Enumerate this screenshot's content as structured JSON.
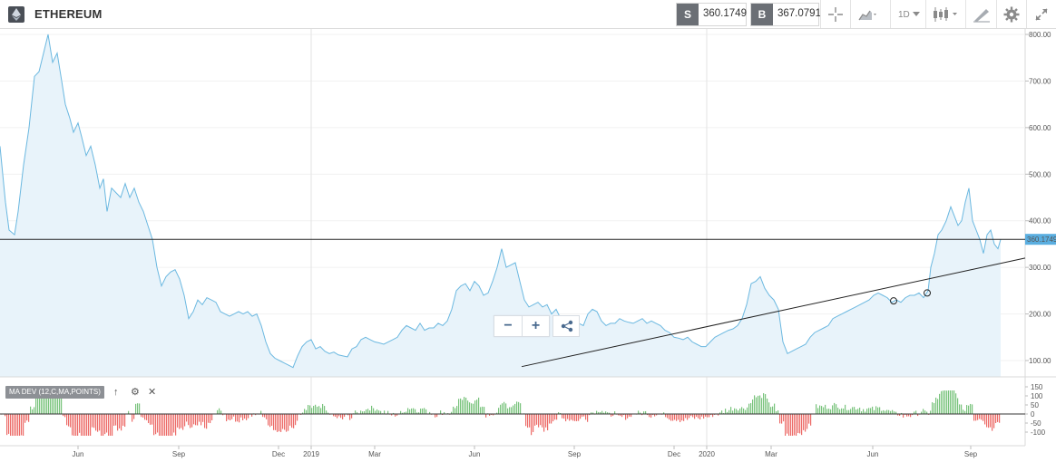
{
  "header": {
    "title": "ETHEREUM",
    "logo_icon": "ethereum-icon",
    "sell": {
      "tag": "S",
      "value": "360.1749"
    },
    "buy": {
      "tag": "B",
      "value": "367.0791"
    },
    "toolbar": [
      {
        "name": "crosshair-button",
        "icon": "crosshair-icon"
      },
      {
        "name": "chart-type-button",
        "icon": "area-chart-icon"
      },
      {
        "name": "timeframe-button",
        "label": "1D"
      },
      {
        "name": "candle-type-button",
        "icon": "candlestick-icon"
      },
      {
        "name": "drawing-tools-button",
        "icon": "pencil-icon"
      },
      {
        "name": "settings-button",
        "icon": "gear-icon"
      },
      {
        "name": "fullscreen-button",
        "icon": "expand-icon"
      }
    ]
  },
  "price_axis": {
    "ticks": [
      "800.00",
      "700.00",
      "600.00",
      "500.00",
      "400.00",
      "300.00",
      "200.00",
      "100.00"
    ],
    "current_price_label": "360.1749"
  },
  "indicator": {
    "label": "MA DEV (12,C,MA,POINTS)",
    "axis_ticks": [
      "150",
      "100",
      "50",
      "0",
      "-50",
      "-100"
    ],
    "buttons": [
      "arrow-up-icon",
      "gear-icon",
      "close-icon"
    ]
  },
  "time_axis": [
    "Jun",
    "Sep",
    "Dec",
    "2019",
    "Mar",
    "Jun",
    "Sep",
    "Dec",
    "2020",
    "Mar",
    "Jun",
    "Sep"
  ],
  "zoom_controls": {
    "minus": "−",
    "plus": "+"
  },
  "colors": {
    "price_line": "#6bb8e0",
    "price_fill": "#e8f3fa",
    "current_price_badge": "#5aaee0",
    "histogram_up": "#4caf50",
    "histogram_down": "#e53935"
  },
  "chart_data": {
    "type": "area",
    "series": [
      {
        "values": [
          [
            0,
            560
          ],
          [
            6,
            440
          ],
          [
            10,
            380
          ],
          [
            16,
            370
          ],
          [
            20,
            420
          ],
          [
            26,
            520
          ],
          [
            32,
            600
          ],
          [
            38,
            710
          ],
          [
            43,
            720
          ],
          [
            48,
            760
          ],
          [
            53,
            800
          ],
          [
            58,
            740
          ],
          [
            63,
            760
          ],
          [
            68,
            700
          ],
          [
            72,
            650
          ],
          [
            77,
            620
          ],
          [
            81,
            590
          ],
          [
            86,
            610
          ],
          [
            90,
            580
          ],
          [
            95,
            540
          ],
          [
            100,
            560
          ],
          [
            105,
            520
          ],
          [
            110,
            470
          ],
          [
            114,
            490
          ],
          [
            118,
            420
          ],
          [
            123,
            470
          ],
          [
            128,
            460
          ],
          [
            133,
            450
          ],
          [
            138,
            480
          ],
          [
            143,
            450
          ],
          [
            148,
            470
          ],
          [
            153,
            440
          ],
          [
            158,
            420
          ],
          [
            163,
            390
          ],
          [
            168,
            360
          ],
          [
            173,
            300
          ],
          [
            178,
            260
          ],
          [
            183,
            280
          ],
          [
            188,
            290
          ],
          [
            193,
            295
          ],
          [
            198,
            275
          ],
          [
            203,
            240
          ],
          [
            208,
            190
          ],
          [
            213,
            205
          ],
          [
            218,
            230
          ],
          [
            223,
            220
          ],
          [
            228,
            235
          ],
          [
            233,
            230
          ],
          [
            238,
            225
          ],
          [
            243,
            205
          ],
          [
            248,
            200
          ],
          [
            253,
            195
          ],
          [
            258,
            200
          ],
          [
            263,
            205
          ],
          [
            268,
            200
          ],
          [
            273,
            205
          ],
          [
            278,
            195
          ],
          [
            283,
            200
          ],
          [
            288,
            175
          ],
          [
            293,
            140
          ],
          [
            298,
            115
          ],
          [
            303,
            105
          ],
          [
            308,
            100
          ],
          [
            313,
            95
          ],
          [
            318,
            90
          ],
          [
            323,
            85
          ],
          [
            328,
            110
          ],
          [
            333,
            130
          ],
          [
            338,
            140
          ],
          [
            343,
            145
          ],
          [
            348,
            125
          ],
          [
            353,
            130
          ],
          [
            358,
            120
          ],
          [
            363,
            115
          ],
          [
            368,
            118
          ],
          [
            373,
            112
          ],
          [
            378,
            110
          ],
          [
            383,
            108
          ],
          [
            388,
            125
          ],
          [
            393,
            130
          ],
          [
            398,
            145
          ],
          [
            403,
            150
          ],
          [
            408,
            145
          ],
          [
            413,
            140
          ],
          [
            418,
            138
          ],
          [
            423,
            135
          ],
          [
            428,
            140
          ],
          [
            433,
            145
          ],
          [
            438,
            150
          ],
          [
            443,
            165
          ],
          [
            448,
            175
          ],
          [
            453,
            170
          ],
          [
            458,
            165
          ],
          [
            463,
            180
          ],
          [
            468,
            165
          ],
          [
            473,
            170
          ],
          [
            478,
            170
          ],
          [
            483,
            180
          ],
          [
            488,
            175
          ],
          [
            493,
            185
          ],
          [
            498,
            210
          ],
          [
            503,
            250
          ],
          [
            508,
            260
          ],
          [
            513,
            265
          ],
          [
            518,
            250
          ],
          [
            523,
            270
          ],
          [
            528,
            260
          ],
          [
            533,
            240
          ],
          [
            538,
            245
          ],
          [
            543,
            270
          ],
          [
            548,
            300
          ],
          [
            553,
            340
          ],
          [
            558,
            300
          ],
          [
            563,
            305
          ],
          [
            568,
            310
          ],
          [
            573,
            270
          ],
          [
            578,
            230
          ],
          [
            583,
            215
          ],
          [
            588,
            220
          ],
          [
            593,
            225
          ],
          [
            598,
            215
          ],
          [
            603,
            220
          ],
          [
            608,
            200
          ],
          [
            613,
            210
          ],
          [
            618,
            190
          ],
          [
            623,
            195
          ],
          [
            628,
            180
          ],
          [
            633,
            175
          ],
          [
            638,
            180
          ],
          [
            643,
            175
          ],
          [
            648,
            200
          ],
          [
            653,
            210
          ],
          [
            658,
            205
          ],
          [
            663,
            185
          ],
          [
            668,
            175
          ],
          [
            673,
            180
          ],
          [
            678,
            180
          ],
          [
            683,
            190
          ],
          [
            688,
            185
          ],
          [
            693,
            182
          ],
          [
            698,
            180
          ],
          [
            703,
            185
          ],
          [
            708,
            190
          ],
          [
            713,
            180
          ],
          [
            718,
            185
          ],
          [
            723,
            180
          ],
          [
            728,
            175
          ],
          [
            733,
            165
          ],
          [
            738,
            160
          ],
          [
            743,
            150
          ],
          [
            748,
            148
          ],
          [
            753,
            145
          ],
          [
            758,
            150
          ],
          [
            763,
            140
          ],
          [
            768,
            135
          ],
          [
            773,
            130
          ],
          [
            778,
            130
          ],
          [
            783,
            140
          ],
          [
            788,
            150
          ],
          [
            793,
            155
          ],
          [
            798,
            160
          ],
          [
            803,
            165
          ],
          [
            808,
            168
          ],
          [
            813,
            175
          ],
          [
            818,
            190
          ],
          [
            823,
            220
          ],
          [
            828,
            265
          ],
          [
            833,
            270
          ],
          [
            838,
            280
          ],
          [
            843,
            255
          ],
          [
            848,
            240
          ],
          [
            853,
            230
          ],
          [
            858,
            210
          ],
          [
            863,
            140
          ],
          [
            868,
            115
          ],
          [
            873,
            120
          ],
          [
            878,
            125
          ],
          [
            883,
            130
          ],
          [
            888,
            135
          ],
          [
            893,
            150
          ],
          [
            898,
            160
          ],
          [
            903,
            165
          ],
          [
            908,
            170
          ],
          [
            913,
            175
          ],
          [
            918,
            190
          ],
          [
            923,
            195
          ],
          [
            928,
            200
          ],
          [
            933,
            205
          ],
          [
            938,
            210
          ],
          [
            943,
            215
          ],
          [
            948,
            220
          ],
          [
            953,
            225
          ],
          [
            958,
            230
          ],
          [
            963,
            240
          ],
          [
            968,
            245
          ],
          [
            973,
            240
          ],
          [
            978,
            235
          ],
          [
            983,
            225
          ],
          [
            988,
            230
          ],
          [
            993,
            225
          ],
          [
            998,
            235
          ],
          [
            1003,
            240
          ],
          [
            1008,
            240
          ],
          [
            1013,
            245
          ],
          [
            1018,
            235
          ],
          [
            1023,
            250
          ],
          [
            1026,
            300
          ],
          [
            1030,
            330
          ],
          [
            1034,
            370
          ],
          [
            1038,
            380
          ],
          [
            1043,
            400
          ],
          [
            1048,
            430
          ],
          [
            1052,
            410
          ],
          [
            1056,
            390
          ],
          [
            1060,
            400
          ],
          [
            1064,
            440
          ],
          [
            1068,
            470
          ],
          [
            1072,
            400
          ],
          [
            1076,
            380
          ],
          [
            1080,
            360
          ],
          [
            1084,
            330
          ],
          [
            1088,
            370
          ],
          [
            1092,
            380
          ],
          [
            1096,
            350
          ],
          [
            1100,
            340
          ],
          [
            1103,
            360
          ]
        ]
      }
    ],
    "ylim": [
      70,
      810
    ],
    "grid": true,
    "reference_lines": [
      {
        "type": "horizontal",
        "y": 360.1749
      },
      {
        "type": "trend",
        "from": [
          575,
          87
        ],
        "to": [
          1130,
          320
        ]
      }
    ],
    "trend_anchor_points": [
      [
        985,
        228
      ],
      [
        1022,
        245
      ]
    ]
  }
}
